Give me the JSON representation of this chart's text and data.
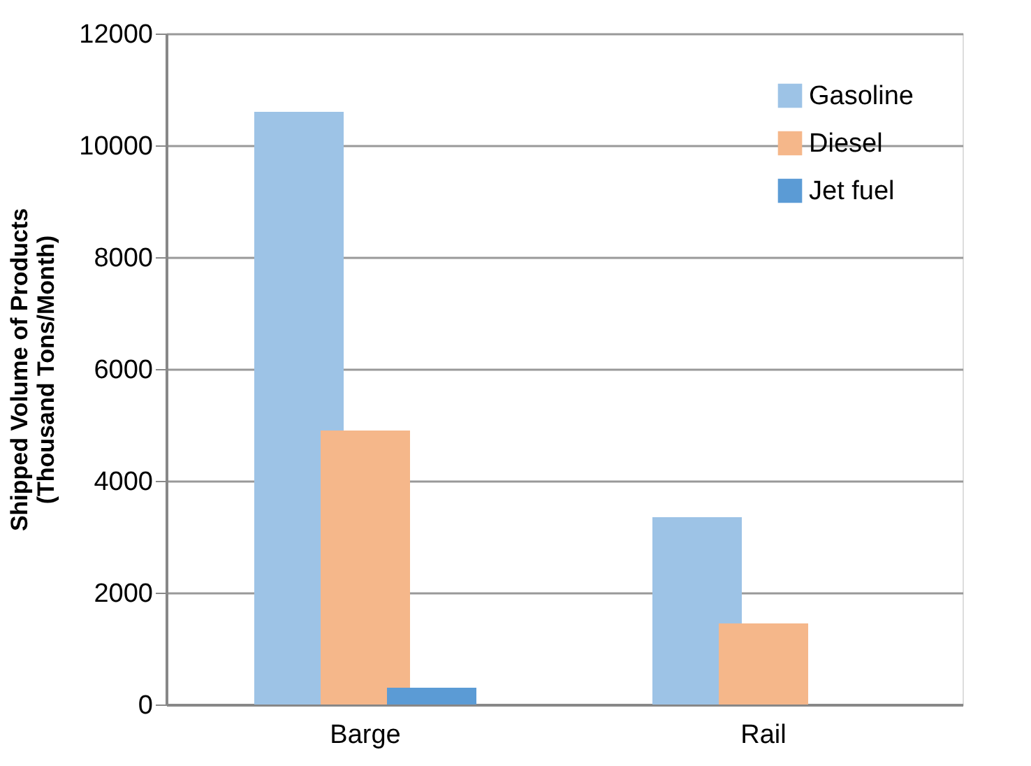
{
  "chart_data": {
    "type": "bar",
    "ylabel": "Shipped Volume of Products (Thousand Tons/Month)",
    "categories": [
      "Barge",
      "Rail"
    ],
    "series": [
      {
        "name": "Gasoline",
        "color": "#9dc3e6",
        "values": [
          10600,
          3350
        ]
      },
      {
        "name": "Diesel",
        "color": "#f5b78a",
        "values": [
          4900,
          1450
        ]
      },
      {
        "name": "Jet fuel",
        "color": "#5b9bd5",
        "values": [
          300,
          null
        ]
      }
    ],
    "ylim": [
      0,
      12000
    ],
    "yticks": [
      0,
      2000,
      4000,
      6000,
      8000,
      10000,
      12000
    ],
    "grid": "y",
    "legend": "top right"
  }
}
